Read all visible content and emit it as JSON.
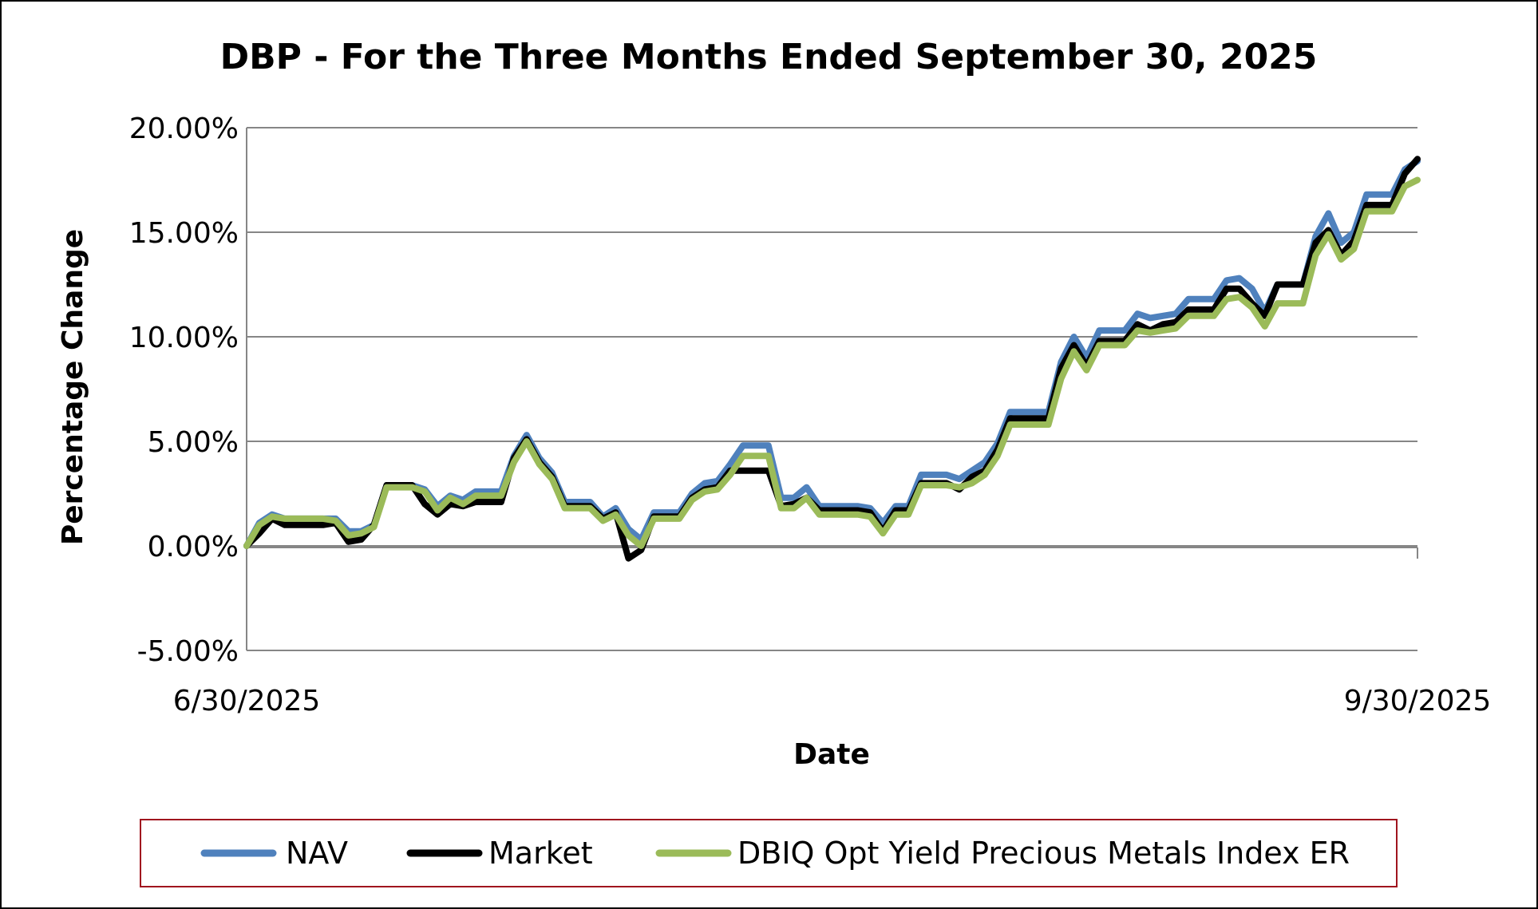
{
  "chart_data": {
    "type": "line",
    "title": "DBP - For the Three Months Ended September 30, 2025",
    "xlabel": "Date",
    "ylabel": "Percentage Change",
    "ylim": [
      -5,
      20
    ],
    "ytick_values": [
      -5,
      0,
      5,
      10,
      15,
      20
    ],
    "ytick_labels": [
      "-5.00%",
      "0.00%",
      "5.00%",
      "10.00%",
      "15.00%",
      "20.00%"
    ],
    "x_start_label": "6/30/2025",
    "x_end_label": "9/30/2025",
    "grid": true,
    "legend_position": "bottom",
    "series": [
      {
        "name": "NAV",
        "color": "#4F81BD",
        "values": [
          0.0,
          1.1,
          1.5,
          1.3,
          1.3,
          1.3,
          1.3,
          1.3,
          0.7,
          0.7,
          1.0,
          2.9,
          2.9,
          2.9,
          2.7,
          1.9,
          2.4,
          2.2,
          2.6,
          2.6,
          2.6,
          4.3,
          5.3,
          4.2,
          3.5,
          2.1,
          2.1,
          2.1,
          1.4,
          1.8,
          0.8,
          0.3,
          1.6,
          1.6,
          1.6,
          2.5,
          3.0,
          3.1,
          3.9,
          4.8,
          4.8,
          4.8,
          2.3,
          2.3,
          2.8,
          1.9,
          1.9,
          1.9,
          1.9,
          1.8,
          1.1,
          1.9,
          1.9,
          3.4,
          3.4,
          3.4,
          3.2,
          3.6,
          4.0,
          4.9,
          6.4,
          6.4,
          6.4,
          6.4,
          8.8,
          10.0,
          9.0,
          10.3,
          10.3,
          10.3,
          11.1,
          10.9,
          11.0,
          11.1,
          11.8,
          11.8,
          11.8,
          12.7,
          12.8,
          12.3,
          11.2,
          12.5,
          12.5,
          12.5,
          14.8,
          15.9,
          14.5,
          15.0,
          16.8,
          16.8,
          16.8,
          18.0,
          18.4
        ]
      },
      {
        "name": "Market",
        "color": "#000000",
        "values": [
          0.0,
          0.6,
          1.3,
          1.0,
          1.0,
          1.0,
          1.0,
          1.1,
          0.2,
          0.3,
          1.0,
          2.9,
          2.9,
          2.9,
          2.0,
          1.5,
          2.0,
          1.9,
          2.1,
          2.1,
          2.1,
          4.2,
          5.1,
          4.0,
          3.3,
          1.9,
          1.9,
          1.9,
          1.3,
          1.6,
          -0.6,
          -0.2,
          1.4,
          1.4,
          1.4,
          2.3,
          2.7,
          2.8,
          3.6,
          3.6,
          3.6,
          3.6,
          1.9,
          2.0,
          2.3,
          1.7,
          1.7,
          1.7,
          1.7,
          1.6,
          0.7,
          1.7,
          1.7,
          3.0,
          3.0,
          3.0,
          2.7,
          3.3,
          3.6,
          4.6,
          6.1,
          6.1,
          6.1,
          6.1,
          8.5,
          9.6,
          8.6,
          9.8,
          9.8,
          9.8,
          10.6,
          10.3,
          10.6,
          10.7,
          11.3,
          11.3,
          11.3,
          12.3,
          12.3,
          11.6,
          11.0,
          12.5,
          12.5,
          12.5,
          14.5,
          15.1,
          13.9,
          14.6,
          16.3,
          16.3,
          16.3,
          17.8,
          18.5
        ]
      },
      {
        "name": "DBIQ Opt Yield Precious Metals Index ER",
        "color": "#9BBB59",
        "values": [
          0.0,
          1.0,
          1.4,
          1.3,
          1.3,
          1.3,
          1.3,
          1.2,
          0.5,
          0.6,
          0.9,
          2.8,
          2.8,
          2.8,
          2.6,
          1.7,
          2.3,
          2.0,
          2.4,
          2.4,
          2.4,
          4.0,
          5.0,
          3.9,
          3.2,
          1.8,
          1.8,
          1.8,
          1.2,
          1.5,
          0.5,
          0.0,
          1.3,
          1.3,
          1.3,
          2.2,
          2.6,
          2.7,
          3.4,
          4.3,
          4.3,
          4.3,
          1.8,
          1.8,
          2.3,
          1.5,
          1.5,
          1.5,
          1.5,
          1.4,
          0.6,
          1.5,
          1.5,
          2.9,
          2.9,
          2.9,
          2.8,
          3.0,
          3.4,
          4.3,
          5.8,
          5.8,
          5.8,
          5.8,
          8.0,
          9.3,
          8.4,
          9.6,
          9.6,
          9.6,
          10.3,
          10.2,
          10.3,
          10.4,
          11.0,
          11.0,
          11.0,
          11.8,
          11.9,
          11.4,
          10.5,
          11.6,
          11.6,
          11.6,
          13.9,
          14.9,
          13.7,
          14.2,
          16.0,
          16.0,
          16.0,
          17.2,
          17.5
        ]
      }
    ]
  }
}
